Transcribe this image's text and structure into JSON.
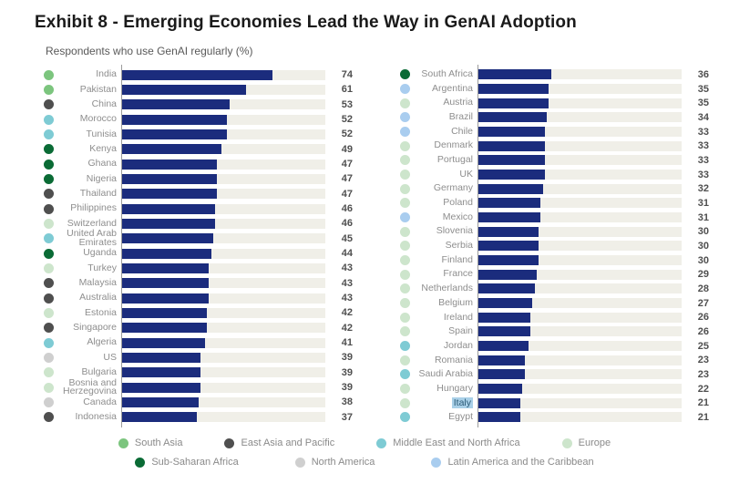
{
  "title": "Exhibit 8 - Emerging Economies Lead the Way in GenAI Adoption",
  "subtitle": "Respondents who use GenAI regularly (%)",
  "colors": {
    "bar": "#1B2C7D",
    "track": "#F0EFE8",
    "axis": "#9B9B9B",
    "highlight": "#A9D0E8",
    "regions": {
      "south-asia": "#7CC57E",
      "east-asia-pacific": "#4F4F4F",
      "middle-east-north-africa": "#7ECBD4",
      "europe": "#CDE5CC",
      "sub-saharan-africa": "#0A6B35",
      "north-america": "#CFCFCF",
      "latin-america-caribbean": "#A9CDEF"
    }
  },
  "chart_data": {
    "type": "bar",
    "orientation": "horizontal",
    "title": "Exhibit 8 - Emerging Economies Lead the Way in GenAI Adoption",
    "subtitle": "Respondents who use GenAI regularly (%)",
    "value_unit": "%",
    "xlim": [
      0,
      100
    ],
    "grid": false,
    "legend_position": "bottom",
    "columns": [
      {
        "rows": [
          {
            "country": "India",
            "value": 74,
            "region": "south-asia"
          },
          {
            "country": "Pakistan",
            "value": 61,
            "region": "south-asia"
          },
          {
            "country": "China",
            "value": 53,
            "region": "east-asia-pacific"
          },
          {
            "country": "Morocco",
            "value": 52,
            "region": "middle-east-north-africa"
          },
          {
            "country": "Tunisia",
            "value": 52,
            "region": "middle-east-north-africa"
          },
          {
            "country": "Kenya",
            "value": 49,
            "region": "sub-saharan-africa"
          },
          {
            "country": "Ghana",
            "value": 47,
            "region": "sub-saharan-africa"
          },
          {
            "country": "Nigeria",
            "value": 47,
            "region": "sub-saharan-africa"
          },
          {
            "country": "Thailand",
            "value": 47,
            "region": "east-asia-pacific"
          },
          {
            "country": "Philippines",
            "value": 46,
            "region": "east-asia-pacific"
          },
          {
            "country": "Switzerland",
            "value": 46,
            "region": "europe"
          },
          {
            "country": "United Arab Emirates",
            "value": 45,
            "region": "middle-east-north-africa"
          },
          {
            "country": "Uganda",
            "value": 44,
            "region": "sub-saharan-africa"
          },
          {
            "country": "Turkey",
            "value": 43,
            "region": "europe"
          },
          {
            "country": "Malaysia",
            "value": 43,
            "region": "east-asia-pacific"
          },
          {
            "country": "Australia",
            "value": 43,
            "region": "east-asia-pacific"
          },
          {
            "country": "Estonia",
            "value": 42,
            "region": "europe"
          },
          {
            "country": "Singapore",
            "value": 42,
            "region": "east-asia-pacific"
          },
          {
            "country": "Algeria",
            "value": 41,
            "region": "middle-east-north-africa"
          },
          {
            "country": "US",
            "value": 39,
            "region": "north-america"
          },
          {
            "country": "Bulgaria",
            "value": 39,
            "region": "europe"
          },
          {
            "country": "Bosnia and Herzegovina",
            "value": 39,
            "region": "europe"
          },
          {
            "country": "Canada",
            "value": 38,
            "region": "north-america"
          },
          {
            "country": "Indonesia",
            "value": 37,
            "region": "east-asia-pacific"
          }
        ]
      },
      {
        "rows": [
          {
            "country": "South Africa",
            "value": 36,
            "region": "sub-saharan-africa"
          },
          {
            "country": "Argentina",
            "value": 35,
            "region": "latin-america-caribbean"
          },
          {
            "country": "Austria",
            "value": 35,
            "region": "europe"
          },
          {
            "country": "Brazil",
            "value": 34,
            "region": "latin-america-caribbean"
          },
          {
            "country": "Chile",
            "value": 33,
            "region": "latin-america-caribbean"
          },
          {
            "country": "Denmark",
            "value": 33,
            "region": "europe"
          },
          {
            "country": "Portugal",
            "value": 33,
            "region": "europe"
          },
          {
            "country": "UK",
            "value": 33,
            "region": "europe"
          },
          {
            "country": "Germany",
            "value": 32,
            "region": "europe"
          },
          {
            "country": "Poland",
            "value": 31,
            "region": "europe"
          },
          {
            "country": "Mexico",
            "value": 31,
            "region": "latin-america-caribbean"
          },
          {
            "country": "Slovenia",
            "value": 30,
            "region": "europe"
          },
          {
            "country": "Serbia",
            "value": 30,
            "region": "europe"
          },
          {
            "country": "Finland",
            "value": 30,
            "region": "europe"
          },
          {
            "country": "France",
            "value": 29,
            "region": "europe"
          },
          {
            "country": "Netherlands",
            "value": 28,
            "region": "europe"
          },
          {
            "country": "Belgium",
            "value": 27,
            "region": "europe"
          },
          {
            "country": "Ireland",
            "value": 26,
            "region": "europe"
          },
          {
            "country": "Spain",
            "value": 26,
            "region": "europe"
          },
          {
            "country": "Jordan",
            "value": 25,
            "region": "middle-east-north-africa"
          },
          {
            "country": "Romania",
            "value": 23,
            "region": "europe"
          },
          {
            "country": "Saudi Arabia",
            "value": 23,
            "region": "middle-east-north-africa"
          },
          {
            "country": "Hungary",
            "value": 22,
            "region": "europe"
          },
          {
            "country": "Italy",
            "value": 21,
            "region": "europe",
            "highlighted": true
          },
          {
            "country": "Egypt",
            "value": 21,
            "region": "middle-east-north-africa"
          }
        ]
      }
    ]
  },
  "legend": {
    "rows": [
      [
        {
          "label": "South Asia",
          "region": "south-asia"
        },
        {
          "label": "East Asia and Pacific",
          "region": "east-asia-pacific"
        },
        {
          "label": "Middle East and North Africa",
          "region": "middle-east-north-africa"
        },
        {
          "label": "Europe",
          "region": "europe"
        }
      ],
      [
        {
          "label": "Sub-Saharan Africa",
          "region": "sub-saharan-africa"
        },
        {
          "label": "North America",
          "region": "north-america"
        },
        {
          "label": "Latin America and the Caribbean",
          "region": "latin-america-caribbean"
        }
      ]
    ]
  }
}
